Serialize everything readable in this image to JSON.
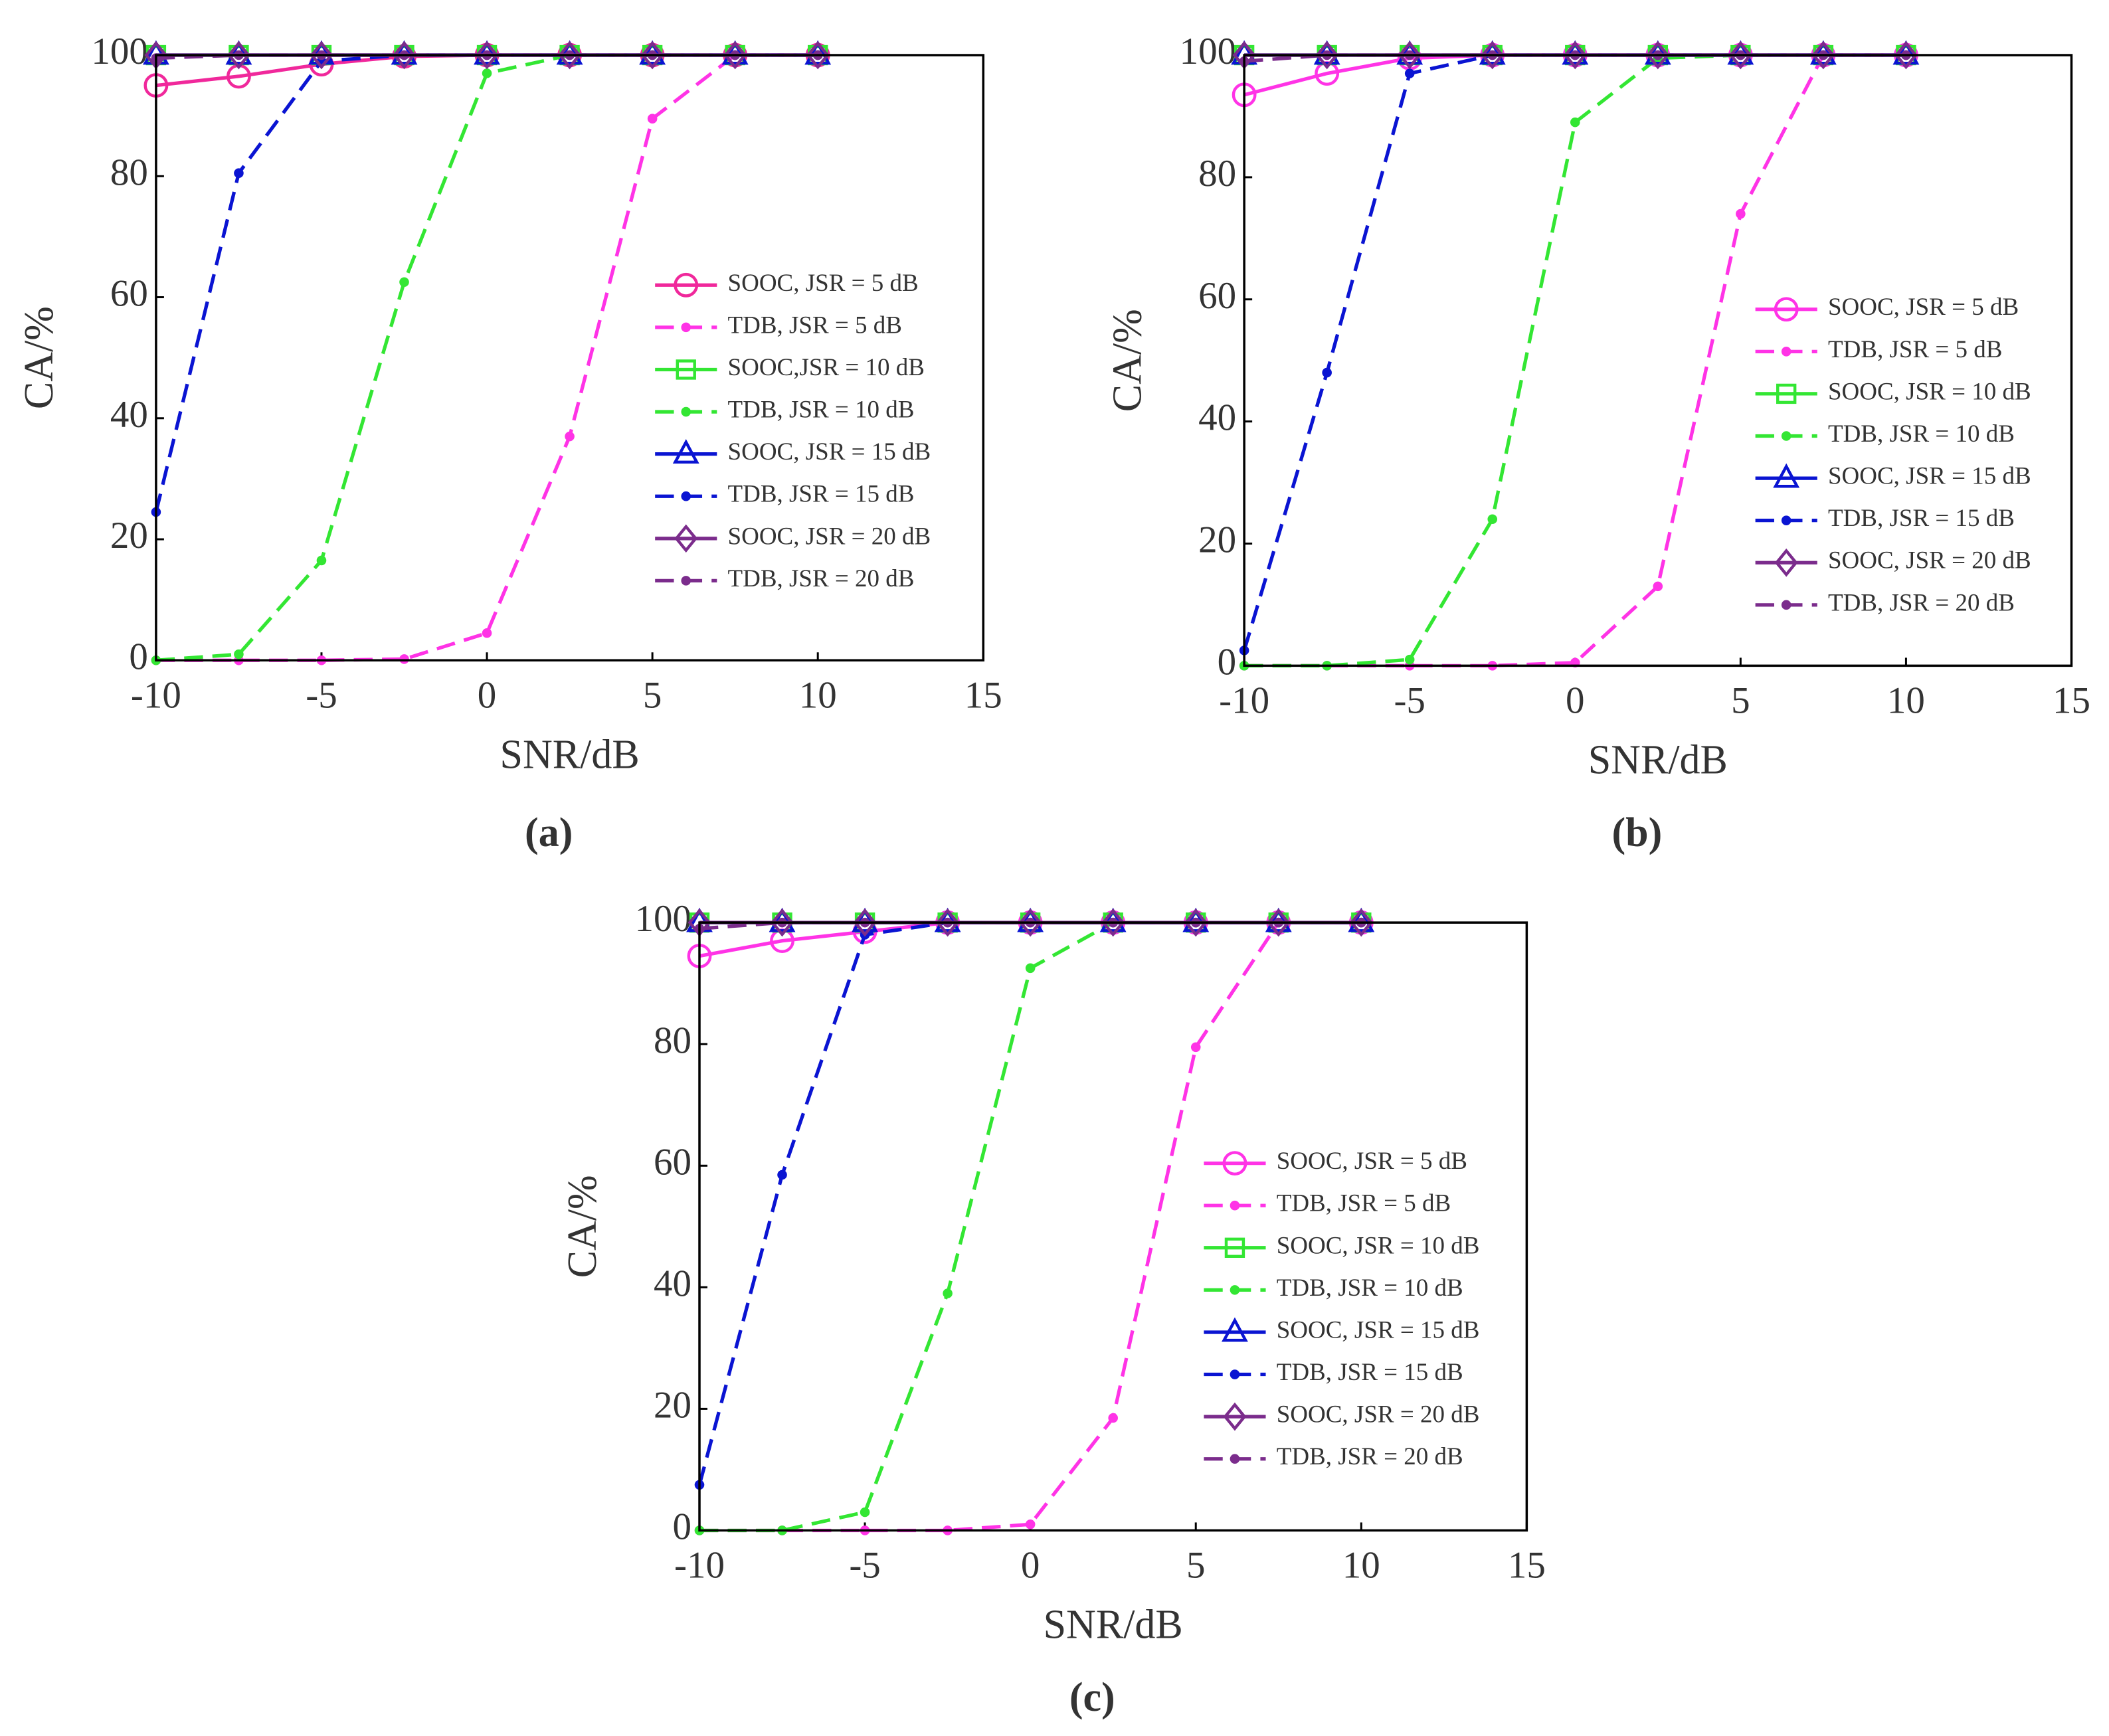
{
  "chart_data": [
    {
      "type": "line",
      "caption": "(a)",
      "xlabel": "SNR/dB",
      "ylabel": "CA/%",
      "x": [
        -10,
        -7.5,
        -5,
        -2.5,
        0,
        2.5,
        5,
        7.5,
        10
      ],
      "xlim": [
        -10,
        15
      ],
      "xticks": [
        -10,
        -5,
        0,
        5,
        10,
        15
      ],
      "ylim": [
        0,
        100
      ],
      "yticks": [
        0,
        20,
        40,
        60,
        80,
        100
      ],
      "legend": "right",
      "series": [
        {
          "name": "SOOC, JSR = 5 dB",
          "color": "#f0289b",
          "marker": "circle",
          "dashed": false,
          "values": [
            95,
            96.5,
            98.5,
            99.8,
            100,
            100,
            100,
            100,
            100
          ]
        },
        {
          "name": "TDB, JSR = 5 dB",
          "color": "#ff33e6",
          "marker": "dot",
          "dashed": true,
          "values": [
            0,
            0,
            0,
            0.2,
            4.5,
            37,
            89.5,
            100,
            100
          ]
        },
        {
          "name": "SOOC,JSR = 10 dB",
          "color": "#33e633",
          "marker": "square",
          "dashed": false,
          "values": [
            100,
            100,
            100,
            100,
            100,
            100,
            100,
            100,
            100
          ]
        },
        {
          "name": "TDB, JSR = 10 dB",
          "color": "#33e633",
          "marker": "dot",
          "dashed": true,
          "values": [
            0,
            1,
            16.5,
            62.5,
            97,
            100,
            100,
            100,
            100
          ]
        },
        {
          "name": "SOOC, JSR = 15 dB",
          "color": "#0a14d2",
          "marker": "triangle",
          "dashed": false,
          "values": [
            100,
            100,
            100,
            100,
            100,
            100,
            100,
            100,
            100
          ]
        },
        {
          "name": "TDB, JSR = 15 dB",
          "color": "#0a14d2",
          "marker": "dot",
          "dashed": true,
          "values": [
            24.5,
            80.5,
            99,
            100,
            100,
            100,
            100,
            100,
            100
          ]
        },
        {
          "name": "SOOC, JSR = 20 dB",
          "color": "#7b2c8c",
          "marker": "diamond",
          "dashed": false,
          "values": [
            100,
            100,
            100,
            100,
            100,
            100,
            100,
            100,
            100
          ]
        },
        {
          "name": "TDB, JSR = 20 dB",
          "color": "#7b2c8c",
          "marker": "dot",
          "dashed": true,
          "values": [
            99.5,
            100,
            100,
            100,
            100,
            100,
            100,
            100,
            100
          ]
        }
      ]
    },
    {
      "type": "line",
      "caption": "(b)",
      "xlabel": "SNR/dB",
      "ylabel": "CA/%",
      "x": [
        -10,
        -7.5,
        -5,
        -2.5,
        0,
        2.5,
        5,
        7.5,
        10
      ],
      "xlim": [
        -10,
        15
      ],
      "xticks": [
        -10,
        -5,
        0,
        5,
        10,
        15
      ],
      "ylim": [
        0,
        100
      ],
      "yticks": [
        0,
        20,
        40,
        60,
        80,
        100
      ],
      "legend": "right",
      "series": [
        {
          "name": "SOOC, JSR = 5 dB",
          "color": "#ff33e6",
          "marker": "circle",
          "dashed": false,
          "values": [
            93.5,
            97,
            99.5,
            100,
            100,
            100,
            100,
            100,
            100
          ]
        },
        {
          "name": "TDB, JSR = 5 dB",
          "color": "#ff33e6",
          "marker": "dot",
          "dashed": true,
          "values": [
            0,
            0,
            0,
            0,
            0.5,
            13,
            74,
            100,
            100
          ]
        },
        {
          "name": "SOOC, JSR = 10 dB",
          "color": "#33e633",
          "marker": "square",
          "dashed": false,
          "values": [
            100,
            100,
            100,
            100,
            100,
            100,
            100,
            100,
            100
          ]
        },
        {
          "name": "TDB, JSR = 10 dB",
          "color": "#33e633",
          "marker": "dot",
          "dashed": true,
          "values": [
            0,
            0,
            1,
            24,
            89,
            99.5,
            100,
            100,
            100
          ]
        },
        {
          "name": "SOOC, JSR = 15 dB",
          "color": "#0a14d2",
          "marker": "triangle",
          "dashed": false,
          "values": [
            100,
            100,
            100,
            100,
            100,
            100,
            100,
            100,
            100
          ]
        },
        {
          "name": "TDB, JSR = 15 dB",
          "color": "#0a14d2",
          "marker": "dot",
          "dashed": true,
          "values": [
            2.5,
            48,
            97,
            100,
            100,
            100,
            100,
            100,
            100
          ]
        },
        {
          "name": "SOOC, JSR = 20 dB",
          "color": "#7b2c8c",
          "marker": "diamond",
          "dashed": false,
          "values": [
            100,
            100,
            100,
            100,
            100,
            100,
            100,
            100,
            100
          ]
        },
        {
          "name": "TDB, JSR = 20 dB",
          "color": "#7b2c8c",
          "marker": "dot",
          "dashed": true,
          "values": [
            99,
            100,
            100,
            100,
            100,
            100,
            100,
            100,
            100
          ]
        }
      ]
    },
    {
      "type": "line",
      "caption": "(c)",
      "xlabel": "SNR/dB",
      "ylabel": "CA/%",
      "x": [
        -10,
        -7.5,
        -5,
        -2.5,
        0,
        2.5,
        5,
        7.5,
        10
      ],
      "xlim": [
        -10,
        15
      ],
      "xticks": [
        -10,
        -5,
        0,
        5,
        10,
        15
      ],
      "ylim": [
        0,
        100
      ],
      "yticks": [
        0,
        20,
        40,
        60,
        80,
        100
      ],
      "legend": "right",
      "series": [
        {
          "name": "SOOC, JSR = 5 dB",
          "color": "#ff33e6",
          "marker": "circle",
          "dashed": false,
          "values": [
            94.5,
            97,
            98.5,
            100,
            100,
            100,
            100,
            100,
            100
          ]
        },
        {
          "name": "TDB, JSR = 5 dB",
          "color": "#ff33e6",
          "marker": "dot",
          "dashed": true,
          "values": [
            0,
            0,
            0,
            0,
            1,
            18.5,
            79.5,
            100,
            100
          ]
        },
        {
          "name": "SOOC, JSR = 10 dB",
          "color": "#33e633",
          "marker": "square",
          "dashed": false,
          "values": [
            100,
            100,
            100,
            100,
            100,
            100,
            100,
            100,
            100
          ]
        },
        {
          "name": "TDB, JSR = 10 dB",
          "color": "#33e633",
          "marker": "dot",
          "dashed": true,
          "values": [
            0,
            0,
            3,
            39,
            92.5,
            100,
            100,
            100,
            100
          ]
        },
        {
          "name": "SOOC, JSR = 15 dB",
          "color": "#0a14d2",
          "marker": "triangle",
          "dashed": false,
          "values": [
            100,
            100,
            100,
            100,
            100,
            100,
            100,
            100,
            100
          ]
        },
        {
          "name": "TDB, JSR = 15 dB",
          "color": "#0a14d2",
          "marker": "dot",
          "dashed": true,
          "values": [
            7.5,
            58.5,
            98,
            100,
            100,
            100,
            100,
            100,
            100
          ]
        },
        {
          "name": "SOOC, JSR = 20 dB",
          "color": "#7b2c8c",
          "marker": "diamond",
          "dashed": false,
          "values": [
            100,
            100,
            100,
            100,
            100,
            100,
            100,
            100,
            100
          ]
        },
        {
          "name": "TDB, JSR = 20 dB",
          "color": "#7b2c8c",
          "marker": "dot",
          "dashed": true,
          "values": [
            99,
            100,
            100,
            100,
            100,
            100,
            100,
            100,
            100
          ]
        }
      ]
    }
  ]
}
